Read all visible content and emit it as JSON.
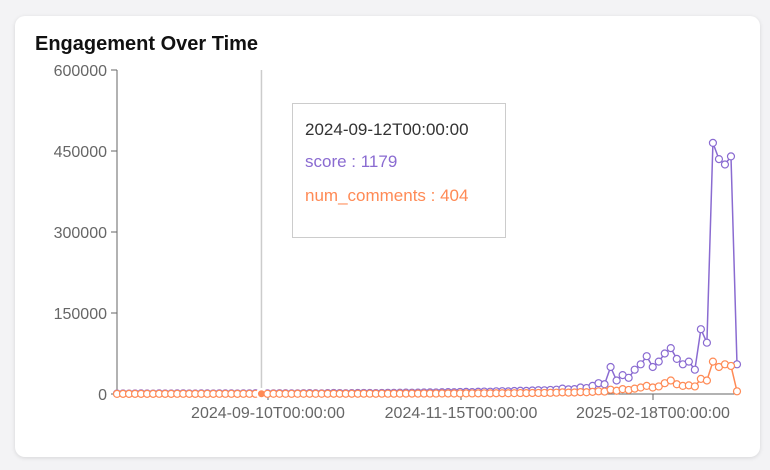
{
  "title": "Engagement Over Time",
  "chart_data": {
    "type": "line",
    "xlabel": "",
    "ylabel": "",
    "ylim": [
      0,
      600000
    ],
    "y_ticks": [
      "0",
      "150000",
      "300000",
      "450000",
      "600000"
    ],
    "x_ticks": [
      "2024-09-10T00:00:00",
      "2024-11-15T00:00:00",
      "2025-02-18T00:00:00"
    ],
    "colors": {
      "score": "#8a6bd1",
      "num_comments": "#ff8a55"
    },
    "series": [
      {
        "name": "score",
        "values": [
          800,
          900,
          700,
          1000,
          1100,
          900,
          800,
          1200,
          1000,
          900,
          1100,
          1300,
          1000,
          900,
          1200,
          1100,
          1000,
          1300,
          1200,
          1100,
          1000,
          1200,
          1300,
          1400,
          1179,
          1200,
          1300,
          1500,
          1400,
          1200,
          1300,
          1500,
          1600,
          1400,
          1300,
          1600,
          1800,
          1700,
          1500,
          1600,
          1800,
          2000,
          1900,
          1700,
          2000,
          2200,
          2100,
          2300,
          2500,
          2400,
          2600,
          2800,
          3000,
          2900,
          3200,
          3500,
          3300,
          3800,
          4000,
          3600,
          4200,
          4500,
          4300,
          5000,
          5200,
          4800,
          5500,
          6000,
          5800,
          6500,
          7000,
          6800,
          7500,
          8000,
          10000,
          8500,
          9000,
          12000,
          11000,
          15000,
          20000,
          18000,
          50000,
          25000,
          35000,
          30000,
          45000,
          55000,
          70000,
          50000,
          60000,
          75000,
          85000,
          65000,
          55000,
          60000,
          45000,
          120000,
          95000,
          465000,
          435000,
          425000,
          440000,
          55000
        ],
        "x_index": [
          0,
          6,
          12,
          18,
          24,
          30,
          36,
          42,
          48,
          54,
          60,
          66,
          72,
          78,
          84,
          90,
          96,
          102,
          108,
          114,
          120,
          126,
          132,
          138,
          144,
          150,
          156,
          162,
          168,
          174,
          180,
          186,
          192,
          198,
          204,
          210,
          216,
          222,
          228,
          234,
          240,
          246,
          252,
          258,
          264,
          270,
          276,
          282,
          288,
          294,
          300,
          306,
          312,
          318,
          324,
          330,
          336,
          342,
          348,
          354,
          360,
          366,
          372,
          378,
          384,
          390,
          396,
          402,
          408,
          414,
          420,
          426,
          432,
          438,
          444,
          450,
          456,
          462,
          468,
          474,
          480,
          486,
          492,
          498,
          504,
          510,
          516,
          522,
          528,
          534,
          540,
          546,
          552,
          558,
          564,
          570,
          576,
          582,
          588,
          594,
          600,
          606,
          612,
          618
        ]
      },
      {
        "name": "num_comments",
        "values": [
          200,
          250,
          220,
          300,
          280,
          260,
          240,
          320,
          300,
          280,
          310,
          340,
          300,
          280,
          330,
          310,
          300,
          350,
          330,
          310,
          300,
          340,
          360,
          380,
          404,
          380,
          400,
          420,
          410,
          380,
          400,
          430,
          450,
          420,
          400,
          460,
          500,
          480,
          450,
          470,
          520,
          560,
          540,
          500,
          560,
          600,
          580,
          640,
          700,
          680,
          720,
          780,
          820,
          800,
          880,
          950,
          900,
          1000,
          1100,
          1000,
          1150,
          1250,
          1200,
          1400,
          1450,
          1350,
          1550,
          1700,
          1650,
          1850,
          2000,
          1950,
          2200,
          2400,
          3000,
          2600,
          2800,
          3500,
          3200,
          4000,
          5000,
          4500,
          8000,
          6000,
          9000,
          7500,
          10000,
          12000,
          15000,
          12000,
          14000,
          20000,
          25000,
          18000,
          15000,
          16000,
          14000,
          28000,
          25000,
          60000,
          50000,
          55000,
          52000,
          5000
        ],
        "x_index": [
          0,
          6,
          12,
          18,
          24,
          30,
          36,
          42,
          48,
          54,
          60,
          66,
          72,
          78,
          84,
          90,
          96,
          102,
          108,
          114,
          120,
          126,
          132,
          138,
          144,
          150,
          156,
          162,
          168,
          174,
          180,
          186,
          192,
          198,
          204,
          210,
          216,
          222,
          228,
          234,
          240,
          246,
          252,
          258,
          264,
          270,
          276,
          282,
          288,
          294,
          300,
          306,
          312,
          318,
          324,
          330,
          336,
          342,
          348,
          354,
          360,
          366,
          372,
          378,
          384,
          390,
          396,
          402,
          408,
          414,
          420,
          426,
          432,
          438,
          444,
          450,
          456,
          462,
          468,
          474,
          480,
          486,
          492,
          498,
          504,
          510,
          516,
          522,
          528,
          534,
          540,
          546,
          552,
          558,
          564,
          570,
          576,
          582,
          588,
          594,
          600,
          606,
          612,
          618
        ]
      }
    ],
    "tooltip": {
      "label": "2024-09-12T00:00:00",
      "score_text": "score : 1179",
      "comments_text": "num_comments : 404",
      "x_index": 144
    }
  }
}
